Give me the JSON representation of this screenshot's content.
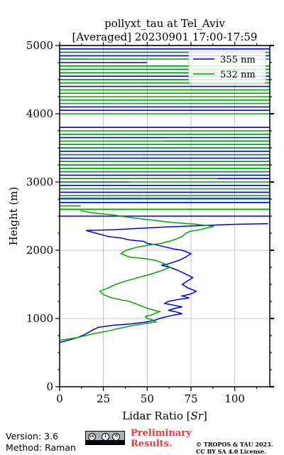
{
  "chart_data": {
    "type": "line",
    "title": "pollyxt_tau at Tel_Aviv",
    "subtitle": "[Averaged] 20230901 17:00-17:59",
    "xlabel": "Lidar Ratio [",
    "xlabel_unit": "Sr",
    "xlabel_end": "]",
    "ylabel": "Height (m)",
    "xlim": [
      0,
      120
    ],
    "ylim": [
      0,
      5000
    ],
    "xticks": [
      "0",
      "25",
      "50",
      "75",
      "100"
    ],
    "yticks": [
      "0",
      "1000",
      "2000",
      "3000",
      "4000",
      "5000"
    ],
    "grid": true,
    "legend_position": "top-right",
    "series": [
      {
        "name": "355 nm",
        "color": "#0000ee",
        "profile": [
          [
            0,
            650
          ],
          [
            5,
            680
          ],
          [
            10,
            720
          ],
          [
            14,
            760
          ],
          [
            18,
            820
          ],
          [
            22,
            870
          ],
          [
            30,
            900
          ],
          [
            40,
            920
          ],
          [
            50,
            950
          ],
          [
            55,
            980
          ],
          [
            57,
            1000
          ],
          [
            60,
            1020
          ],
          [
            65,
            1050
          ],
          [
            70,
            1070
          ],
          [
            66,
            1100
          ],
          [
            62,
            1120
          ],
          [
            66,
            1150
          ],
          [
            70,
            1170
          ],
          [
            64,
            1200
          ],
          [
            60,
            1220
          ],
          [
            62,
            1250
          ],
          [
            68,
            1280
          ],
          [
            74,
            1300
          ],
          [
            70,
            1330
          ],
          [
            75,
            1360
          ],
          [
            78,
            1400
          ],
          [
            73,
            1450
          ],
          [
            70,
            1500
          ],
          [
            73,
            1550
          ],
          [
            76,
            1600
          ],
          [
            72,
            1650
          ],
          [
            68,
            1700
          ],
          [
            63,
            1750
          ],
          [
            58,
            1780
          ],
          [
            62,
            1800
          ],
          [
            68,
            1850
          ],
          [
            72,
            1900
          ],
          [
            75,
            1950
          ],
          [
            70,
            2000
          ],
          [
            65,
            2020
          ],
          [
            60,
            2050
          ],
          [
            55,
            2080
          ],
          [
            50,
            2100
          ],
          [
            48,
            2130
          ],
          [
            40,
            2150
          ],
          [
            35,
            2180
          ],
          [
            28,
            2200
          ],
          [
            15,
            2290
          ],
          [
            30,
            2300
          ],
          [
            45,
            2320
          ],
          [
            60,
            2340
          ],
          [
            80,
            2360
          ],
          [
            100,
            2380
          ],
          [
            119,
            2390
          ]
        ],
        "high_lines": [
          [
            2500,
            0,
            120
          ],
          [
            2600,
            0,
            120
          ],
          [
            2700,
            0,
            120
          ],
          [
            2760,
            0,
            120
          ],
          [
            2850,
            0,
            120
          ],
          [
            2950,
            0,
            120
          ],
          [
            3000,
            0,
            40
          ],
          [
            3050,
            0,
            120
          ],
          [
            3100,
            0,
            120
          ],
          [
            3150,
            0,
            120
          ],
          [
            3200,
            0,
            120
          ],
          [
            3250,
            0,
            120
          ],
          [
            3300,
            0,
            120
          ],
          [
            3350,
            0,
            120
          ],
          [
            3400,
            0,
            120
          ],
          [
            3450,
            0,
            120
          ],
          [
            3500,
            0,
            120
          ],
          [
            3550,
            0,
            120
          ],
          [
            3600,
            60,
            120
          ],
          [
            3650,
            0,
            120
          ],
          [
            3700,
            0,
            120
          ],
          [
            3800,
            0,
            120
          ],
          [
            4050,
            0,
            120
          ],
          [
            4100,
            0,
            120
          ],
          [
            4400,
            0,
            120
          ],
          [
            4500,
            0,
            120
          ],
          [
            4550,
            0,
            120
          ],
          [
            4600,
            0,
            100
          ],
          [
            4650,
            0,
            120
          ],
          [
            4700,
            0,
            120
          ],
          [
            4750,
            0,
            50
          ],
          [
            4800,
            0,
            17
          ],
          [
            4850,
            0,
            120
          ],
          [
            4900,
            0,
            120
          ],
          [
            4950,
            0,
            120
          ]
        ]
      },
      {
        "name": "532 nm",
        "color": "#00aa00",
        "profile": [
          [
            0,
            680
          ],
          [
            10,
            720
          ],
          [
            20,
            780
          ],
          [
            28,
            820
          ],
          [
            35,
            860
          ],
          [
            42,
            900
          ],
          [
            50,
            930
          ],
          [
            55,
            950
          ],
          [
            53,
            980
          ],
          [
            50,
            1000
          ],
          [
            49,
            1030
          ],
          [
            52,
            1050
          ],
          [
            55,
            1080
          ],
          [
            57,
            1100
          ],
          [
            50,
            1150
          ],
          [
            45,
            1200
          ],
          [
            40,
            1250
          ],
          [
            30,
            1300
          ],
          [
            25,
            1350
          ],
          [
            23,
            1400
          ],
          [
            28,
            1450
          ],
          [
            32,
            1500
          ],
          [
            38,
            1550
          ],
          [
            45,
            1600
          ],
          [
            52,
            1650
          ],
          [
            58,
            1700
          ],
          [
            63,
            1750
          ],
          [
            60,
            1800
          ],
          [
            55,
            1850
          ],
          [
            48,
            1880
          ],
          [
            40,
            1900
          ],
          [
            35,
            1950
          ],
          [
            38,
            2000
          ],
          [
            45,
            2050
          ],
          [
            52,
            2080
          ],
          [
            58,
            2100
          ],
          [
            65,
            2150
          ],
          [
            70,
            2200
          ],
          [
            72,
            2250
          ],
          [
            75,
            2280
          ],
          [
            80,
            2300
          ],
          [
            88,
            2350
          ],
          [
            78,
            2380
          ],
          [
            68,
            2400
          ],
          [
            60,
            2420
          ],
          [
            50,
            2450
          ],
          [
            40,
            2480
          ],
          [
            30,
            2520
          ],
          [
            18,
            2550
          ],
          [
            12,
            2580
          ]
        ],
        "high_lines": [
          [
            2600,
            0,
            120
          ],
          [
            2650,
            0,
            12
          ],
          [
            2750,
            0,
            120
          ],
          [
            2800,
            0,
            120
          ],
          [
            2900,
            0,
            120
          ],
          [
            3000,
            0,
            120
          ],
          [
            3050,
            0,
            90
          ],
          [
            3150,
            0,
            120
          ],
          [
            3200,
            0,
            120
          ],
          [
            3250,
            0,
            120
          ],
          [
            3300,
            0,
            120
          ],
          [
            3400,
            0,
            120
          ],
          [
            3500,
            0,
            120
          ],
          [
            3550,
            0,
            120
          ],
          [
            3600,
            0,
            120
          ],
          [
            3700,
            0,
            120
          ],
          [
            3750,
            0,
            120
          ],
          [
            4000,
            0,
            120
          ],
          [
            4150,
            0,
            120
          ],
          [
            4200,
            0,
            120
          ],
          [
            4250,
            0,
            120
          ],
          [
            4300,
            0,
            120
          ],
          [
            4350,
            0,
            120
          ],
          [
            4450,
            0,
            120
          ],
          [
            4500,
            0,
            120
          ],
          [
            4600,
            0,
            120
          ],
          [
            4650,
            0,
            120
          ],
          [
            4700,
            0,
            120
          ],
          [
            4800,
            0,
            120
          ],
          [
            4900,
            0,
            120
          ],
          [
            5000,
            0,
            120
          ]
        ]
      }
    ]
  },
  "footer": {
    "version": "Version: 3.6",
    "method": "Method: Raman",
    "preliminary_line1": "Preliminary",
    "preliminary_line2": "Results.",
    "copyright_line1": "© TROPOS & TAU 2023.",
    "copyright_line2": "CC BY SA 4.0 License.",
    "badge_cc": "cc",
    "badge_by": "i",
    "badge_sa": "⟲"
  }
}
